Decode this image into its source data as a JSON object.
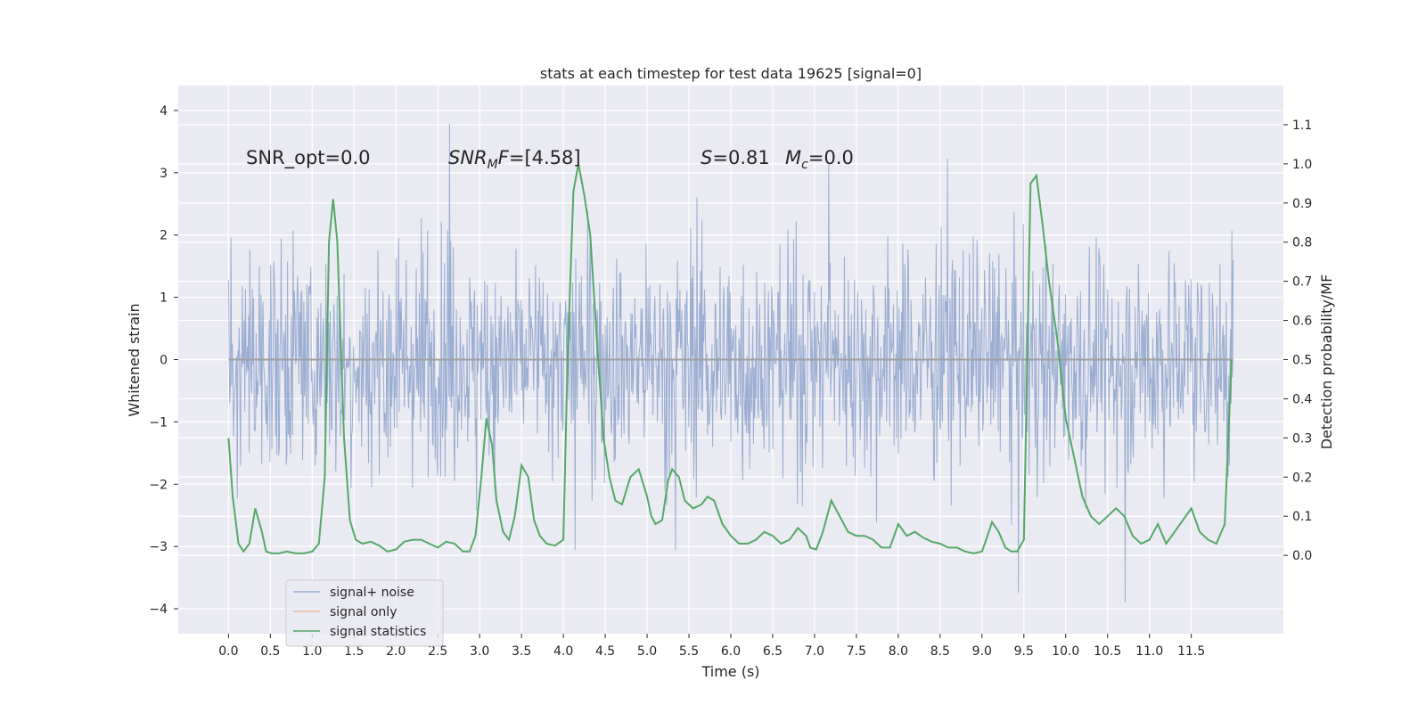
{
  "chart_data": {
    "type": "line",
    "title": "stats at each timestep for test data 19625 [signal=0]",
    "xlabel": "Time (s)",
    "ylabel_left": "Whitened strain",
    "ylabel_right": "Detection probability/MF",
    "xlim": [
      -0.6,
      12.6
    ],
    "ylim_left": [
      -4.4,
      4.4
    ],
    "ylim_right": [
      -0.2,
      1.2
    ],
    "x_ticks": [
      0.0,
      0.5,
      1.0,
      1.5,
      2.0,
      2.5,
      3.0,
      3.5,
      4.0,
      4.5,
      5.0,
      5.5,
      6.0,
      6.5,
      7.0,
      7.5,
      8.0,
      8.5,
      9.0,
      9.5,
      10.0,
      10.5,
      11.0,
      11.5
    ],
    "x_tick_labels": [
      "0.0",
      "0.5",
      "1.0",
      "1.5",
      "2.0",
      "2.5",
      "3.0",
      "3.5",
      "4.0",
      "4.5",
      "5.0",
      "5.5",
      "6.0",
      "6.5",
      "7.0",
      "7.5",
      "8.0",
      "8.5",
      "9.0",
      "9.5",
      "10.0",
      "10.5",
      "11.0",
      "11.5"
    ],
    "y_left_ticks": [
      -4,
      -3,
      -2,
      -1,
      0,
      1,
      2,
      3,
      4
    ],
    "y_left_tick_labels": [
      "−4",
      "−3",
      "−2",
      "−1",
      "0",
      "1",
      "2",
      "3",
      "4"
    ],
    "y_right_ticks": [
      0.0,
      0.1,
      0.2,
      0.3,
      0.4,
      0.5,
      0.6,
      0.7,
      0.8,
      0.9,
      1.0,
      1.1
    ],
    "y_right_tick_labels": [
      "0.0",
      "0.1",
      "0.2",
      "0.3",
      "0.4",
      "0.5",
      "0.6",
      "0.7",
      "0.8",
      "0.9",
      "1.0",
      "1.1"
    ],
    "grid": true,
    "legend_position": "lower-left",
    "annotations": [
      {
        "label": "SNR_opt",
        "value": "0.0",
        "text": "SNR_opt=0.0"
      },
      {
        "label": "SNR_MF",
        "value": "[4.58]",
        "text": "SNR_MF=[4.58]"
      },
      {
        "label": "S",
        "value": "0.81",
        "text": "S=0.81"
      },
      {
        "label": "M_c",
        "value": "0.0",
        "text": "M_c=0.0"
      }
    ],
    "series": [
      {
        "name": "signal+ noise",
        "axis": "left",
        "color": "#4c72b0",
        "x_range": [
          0.0,
          12.0
        ],
        "envelope_min": -3.9,
        "envelope_max": 4.1,
        "note_values": "dense noise trace, ~1.3 typical amplitude"
      },
      {
        "name": "signal only",
        "axis": "left",
        "color": "#dd8452",
        "x_range": [
          0.0,
          12.0
        ],
        "value": 0.0
      },
      {
        "name": "signal statistics",
        "axis": "right",
        "color": "#55a868",
        "x": [
          0.0,
          0.05,
          0.12,
          0.18,
          0.25,
          0.32,
          0.4,
          0.45,
          0.52,
          0.6,
          0.7,
          0.8,
          0.9,
          1.0,
          1.08,
          1.15,
          1.2,
          1.25,
          1.3,
          1.38,
          1.45,
          1.52,
          1.6,
          1.7,
          1.8,
          1.9,
          2.0,
          2.1,
          2.2,
          2.3,
          2.4,
          2.5,
          2.6,
          2.7,
          2.8,
          2.88,
          2.95,
          3.02,
          3.08,
          3.15,
          3.2,
          3.28,
          3.35,
          3.42,
          3.5,
          3.58,
          3.65,
          3.72,
          3.8,
          3.9,
          4.0,
          4.05,
          4.12,
          4.18,
          4.25,
          4.32,
          4.4,
          4.48,
          4.55,
          4.62,
          4.7,
          4.8,
          4.9,
          5.0,
          5.05,
          5.1,
          5.18,
          5.25,
          5.3,
          5.38,
          5.45,
          5.55,
          5.65,
          5.72,
          5.8,
          5.9,
          6.0,
          6.1,
          6.2,
          6.3,
          6.4,
          6.5,
          6.6,
          6.7,
          6.8,
          6.9,
          6.95,
          7.02,
          7.1,
          7.2,
          7.3,
          7.4,
          7.5,
          7.6,
          7.7,
          7.8,
          7.9,
          8.0,
          8.1,
          8.2,
          8.3,
          8.4,
          8.5,
          8.6,
          8.7,
          8.8,
          8.9,
          9.0,
          9.05,
          9.12,
          9.2,
          9.28,
          9.35,
          9.42,
          9.5,
          9.58,
          9.65,
          9.72,
          9.8,
          9.9,
          10.0,
          10.1,
          10.2,
          10.3,
          10.4,
          10.5,
          10.6,
          10.7,
          10.8,
          10.9,
          11.0,
          11.1,
          11.2,
          11.3,
          11.4,
          11.5,
          11.6,
          11.7,
          11.8,
          11.9,
          11.98
        ],
        "y": [
          0.3,
          0.15,
          0.03,
          0.01,
          0.03,
          0.12,
          0.06,
          0.01,
          0.005,
          0.005,
          0.01,
          0.005,
          0.005,
          0.01,
          0.03,
          0.2,
          0.8,
          0.91,
          0.8,
          0.3,
          0.09,
          0.04,
          0.03,
          0.035,
          0.025,
          0.01,
          0.015,
          0.035,
          0.04,
          0.04,
          0.03,
          0.02,
          0.035,
          0.03,
          0.01,
          0.01,
          0.05,
          0.2,
          0.35,
          0.28,
          0.14,
          0.06,
          0.04,
          0.1,
          0.23,
          0.2,
          0.09,
          0.05,
          0.03,
          0.025,
          0.04,
          0.5,
          0.93,
          1.0,
          0.92,
          0.82,
          0.55,
          0.3,
          0.2,
          0.14,
          0.13,
          0.2,
          0.22,
          0.15,
          0.1,
          0.08,
          0.09,
          0.19,
          0.22,
          0.2,
          0.14,
          0.12,
          0.13,
          0.15,
          0.14,
          0.08,
          0.05,
          0.03,
          0.03,
          0.04,
          0.06,
          0.05,
          0.03,
          0.04,
          0.07,
          0.05,
          0.02,
          0.015,
          0.06,
          0.14,
          0.1,
          0.06,
          0.05,
          0.05,
          0.04,
          0.02,
          0.02,
          0.08,
          0.05,
          0.06,
          0.045,
          0.035,
          0.03,
          0.02,
          0.02,
          0.01,
          0.005,
          0.01,
          0.04,
          0.085,
          0.06,
          0.02,
          0.01,
          0.01,
          0.04,
          0.95,
          0.97,
          0.85,
          0.7,
          0.55,
          0.35,
          0.25,
          0.15,
          0.1,
          0.08,
          0.1,
          0.12,
          0.1,
          0.05,
          0.03,
          0.04,
          0.08,
          0.03,
          0.06,
          0.09,
          0.12,
          0.06,
          0.04,
          0.03,
          0.08,
          0.5
        ]
      }
    ]
  }
}
